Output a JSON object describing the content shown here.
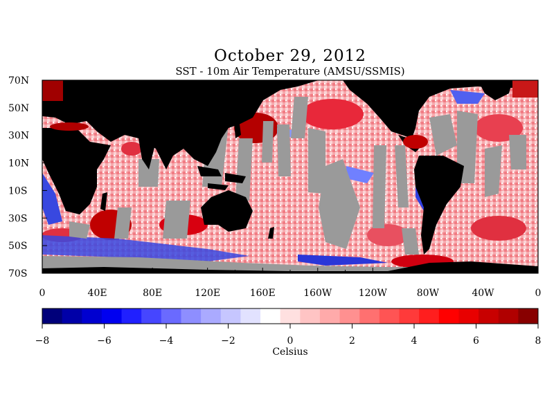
{
  "header": {
    "date": "October 29, 2012",
    "subtitle": "SST - 10m Air Temperature (AMSU/SSMIS)"
  },
  "map": {
    "lat_labels": [
      "70N",
      "50N",
      "30N",
      "10N",
      "10S",
      "30S",
      "50S",
      "70S"
    ],
    "lon_labels": [
      "0",
      "40E",
      "80E",
      "120E",
      "160E",
      "160W",
      "120W",
      "80W",
      "40W",
      "0"
    ],
    "colors": {
      "land": "#000000",
      "missing": "#9a9a9a",
      "warm": "#e8283a",
      "cold": "#2233dd"
    }
  },
  "colorbar": {
    "labels": [
      "−8",
      "−6",
      "−4",
      "−2",
      "0",
      "2",
      "4",
      "6",
      "8"
    ],
    "unit": "Celsius",
    "range": [
      -8,
      8
    ],
    "colors": [
      "#00007a",
      "#0000a8",
      "#0000d0",
      "#0000f0",
      "#2020ff",
      "#4646ff",
      "#6a6aff",
      "#8e8eff",
      "#aaaaff",
      "#c6c6ff",
      "#e2e2ff",
      "#ffffff",
      "#ffe0e0",
      "#ffc4c4",
      "#ffaaaa",
      "#ff9090",
      "#ff7070",
      "#ff5454",
      "#ff3a3a",
      "#ff1e1e",
      "#ff0000",
      "#e80000",
      "#c80000",
      "#b00000",
      "#880000"
    ]
  }
}
